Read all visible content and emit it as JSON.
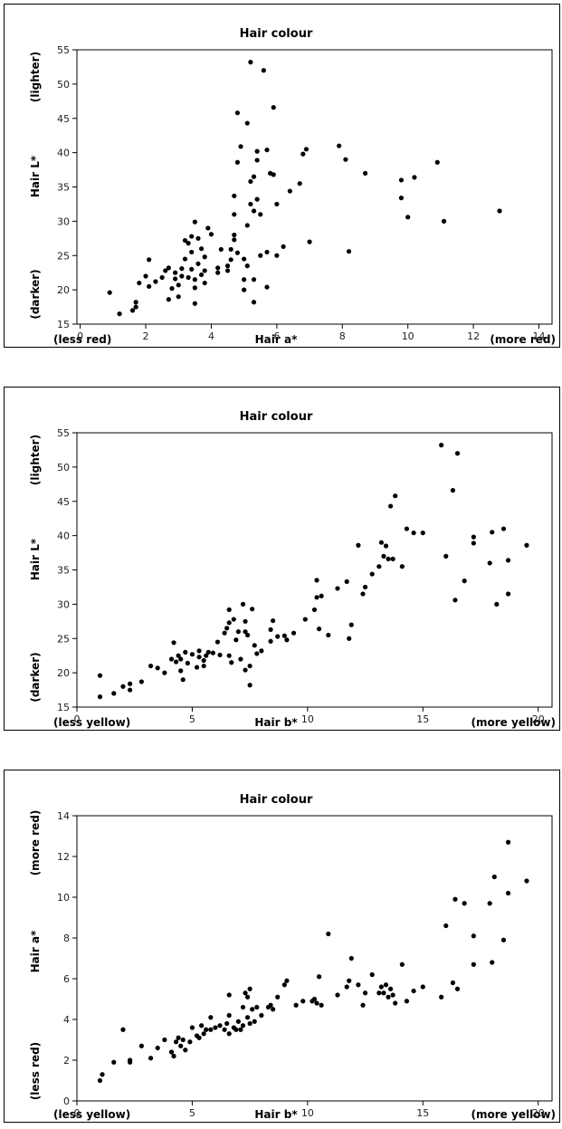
{
  "chart_data": [
    {
      "type": "scatter",
      "title": "Hair colour",
      "xlabel": "Hair a*",
      "ylabel": "Hair L*",
      "x_low_label": "(less red)",
      "x_high_label": "(more red)",
      "y_low_label": "(darker)",
      "y_high_label": "(lighter)",
      "xlim": [
        -0.1,
        14.4
      ],
      "ylim": [
        15,
        55
      ],
      "xticks": [
        0,
        2,
        4,
        6,
        8,
        10,
        12,
        14
      ],
      "yticks": [
        15,
        20,
        25,
        30,
        35,
        40,
        45,
        50,
        55
      ],
      "grid": false,
      "points": [
        [
          0.9,
          19.6
        ],
        [
          1.2,
          16.5
        ],
        [
          1.6,
          17.0
        ],
        [
          1.7,
          17.5
        ],
        [
          1.7,
          18.2
        ],
        [
          1.8,
          21.0
        ],
        [
          2.0,
          22.0
        ],
        [
          2.1,
          24.4
        ],
        [
          2.1,
          20.5
        ],
        [
          2.3,
          21.2
        ],
        [
          2.5,
          21.8
        ],
        [
          2.6,
          22.8
        ],
        [
          2.7,
          23.2
        ],
        [
          2.7,
          18.6
        ],
        [
          2.8,
          20.2
        ],
        [
          2.9,
          22.5
        ],
        [
          2.9,
          21.6
        ],
        [
          3.0,
          19.0
        ],
        [
          3.0,
          20.7
        ],
        [
          3.1,
          22.0
        ],
        [
          3.1,
          23.1
        ],
        [
          3.2,
          24.5
        ],
        [
          3.2,
          27.2
        ],
        [
          3.3,
          21.8
        ],
        [
          3.3,
          26.8
        ],
        [
          3.4,
          23.0
        ],
        [
          3.4,
          27.8
        ],
        [
          3.4,
          25.5
        ],
        [
          3.5,
          20.3
        ],
        [
          3.5,
          21.5
        ],
        [
          3.5,
          18.0
        ],
        [
          3.5,
          29.9
        ],
        [
          3.6,
          27.5
        ],
        [
          3.6,
          23.8
        ],
        [
          3.7,
          26.0
        ],
        [
          3.7,
          22.2
        ],
        [
          3.8,
          22.8
        ],
        [
          3.8,
          21.0
        ],
        [
          3.8,
          24.8
        ],
        [
          3.9,
          29.0
        ],
        [
          4.0,
          28.1
        ],
        [
          4.2,
          22.5
        ],
        [
          4.2,
          23.2
        ],
        [
          4.3,
          25.9
        ],
        [
          4.5,
          23.5
        ],
        [
          4.5,
          22.8
        ],
        [
          4.6,
          25.9
        ],
        [
          4.6,
          24.4
        ],
        [
          4.7,
          27.3
        ],
        [
          4.7,
          28.0
        ],
        [
          4.7,
          31.0
        ],
        [
          4.7,
          33.7
        ],
        [
          4.8,
          25.4
        ],
        [
          4.8,
          38.6
        ],
        [
          4.8,
          45.8
        ],
        [
          4.9,
          40.9
        ],
        [
          5.0,
          24.5
        ],
        [
          5.0,
          21.5
        ],
        [
          5.0,
          20.0
        ],
        [
          5.1,
          23.5
        ],
        [
          5.1,
          29.4
        ],
        [
          5.1,
          44.3
        ],
        [
          5.2,
          53.2
        ],
        [
          5.2,
          32.5
        ],
        [
          5.2,
          35.8
        ],
        [
          5.3,
          21.5
        ],
        [
          5.3,
          18.2
        ],
        [
          5.3,
          36.5
        ],
        [
          5.3,
          31.5
        ],
        [
          5.4,
          33.2
        ],
        [
          5.4,
          38.9
        ],
        [
          5.4,
          40.2
        ],
        [
          5.5,
          31.0
        ],
        [
          5.5,
          25.0
        ],
        [
          5.6,
          52.0
        ],
        [
          5.7,
          20.4
        ],
        [
          5.7,
          25.5
        ],
        [
          5.7,
          40.4
        ],
        [
          5.8,
          37.0
        ],
        [
          5.9,
          36.8
        ],
        [
          5.9,
          46.6
        ],
        [
          6.0,
          32.5
        ],
        [
          6.0,
          25.0
        ],
        [
          6.2,
          26.3
        ],
        [
          6.4,
          34.4
        ],
        [
          6.7,
          35.5
        ],
        [
          6.8,
          39.8
        ],
        [
          6.9,
          40.5
        ],
        [
          7.0,
          27.0
        ],
        [
          7.9,
          41.0
        ],
        [
          8.1,
          39.0
        ],
        [
          8.2,
          25.6
        ],
        [
          8.7,
          37.0
        ],
        [
          9.8,
          36.0
        ],
        [
          9.8,
          33.4
        ],
        [
          10.0,
          30.6
        ],
        [
          10.2,
          36.4
        ],
        [
          10.9,
          38.6
        ],
        [
          11.1,
          30.0
        ],
        [
          12.8,
          31.5
        ]
      ]
    },
    {
      "type": "scatter",
      "title": "Hair colour",
      "xlabel": "Hair b*",
      "ylabel": "Hair L*",
      "x_low_label": "(less yellow)",
      "x_high_label": "(more yellow)",
      "y_low_label": "(darker)",
      "y_high_label": "(lighter)",
      "xlim": [
        0,
        20.6
      ],
      "ylim": [
        15,
        55
      ],
      "xticks": [
        0,
        5,
        10,
        15,
        20
      ],
      "yticks": [
        15,
        20,
        25,
        30,
        35,
        40,
        45,
        50,
        55
      ],
      "grid": false,
      "points": [
        [
          1.0,
          19.6
        ],
        [
          1.0,
          16.5
        ],
        [
          1.6,
          17.0
        ],
        [
          2.0,
          18.0
        ],
        [
          2.3,
          17.5
        ],
        [
          2.3,
          18.4
        ],
        [
          2.8,
          18.7
        ],
        [
          3.2,
          21.0
        ],
        [
          3.5,
          20.7
        ],
        [
          3.8,
          20.0
        ],
        [
          4.1,
          22.0
        ],
        [
          4.2,
          24.4
        ],
        [
          4.3,
          21.6
        ],
        [
          4.4,
          22.5
        ],
        [
          4.5,
          20.3
        ],
        [
          4.5,
          22.0
        ],
        [
          4.6,
          19.0
        ],
        [
          4.7,
          23.0
        ],
        [
          4.8,
          21.4
        ],
        [
          5.0,
          22.7
        ],
        [
          5.2,
          20.8
        ],
        [
          5.3,
          22.3
        ],
        [
          5.3,
          23.2
        ],
        [
          5.5,
          21.8
        ],
        [
          5.5,
          21.0
        ],
        [
          5.6,
          22.5
        ],
        [
          5.7,
          23.0
        ],
        [
          5.9,
          22.9
        ],
        [
          6.1,
          24.5
        ],
        [
          6.2,
          22.6
        ],
        [
          6.4,
          25.8
        ],
        [
          6.5,
          26.5
        ],
        [
          6.6,
          27.3
        ],
        [
          6.6,
          29.2
        ],
        [
          6.6,
          22.5
        ],
        [
          6.7,
          21.5
        ],
        [
          6.8,
          27.8
        ],
        [
          6.9,
          24.8
        ],
        [
          7.0,
          26.0
        ],
        [
          7.1,
          22.0
        ],
        [
          7.2,
          30.0
        ],
        [
          7.3,
          27.5
        ],
        [
          7.3,
          26.0
        ],
        [
          7.3,
          20.4
        ],
        [
          7.4,
          25.5
        ],
        [
          7.5,
          18.2
        ],
        [
          7.5,
          21.0
        ],
        [
          7.6,
          29.3
        ],
        [
          7.7,
          24.0
        ],
        [
          7.8,
          22.8
        ],
        [
          8.0,
          23.2
        ],
        [
          8.4,
          24.6
        ],
        [
          8.4,
          26.3
        ],
        [
          8.5,
          27.6
        ],
        [
          8.7,
          25.3
        ],
        [
          9.0,
          25.4
        ],
        [
          9.1,
          24.8
        ],
        [
          9.4,
          25.8
        ],
        [
          9.9,
          27.8
        ],
        [
          10.3,
          29.2
        ],
        [
          10.4,
          31.0
        ],
        [
          10.4,
          33.5
        ],
        [
          10.5,
          26.4
        ],
        [
          10.6,
          31.2
        ],
        [
          10.9,
          25.5
        ],
        [
          11.3,
          32.3
        ],
        [
          11.7,
          33.3
        ],
        [
          11.8,
          25.0
        ],
        [
          11.9,
          27.0
        ],
        [
          12.2,
          38.6
        ],
        [
          12.4,
          31.5
        ],
        [
          12.5,
          32.5
        ],
        [
          12.8,
          34.4
        ],
        [
          13.1,
          35.5
        ],
        [
          13.2,
          39.0
        ],
        [
          13.3,
          37.0
        ],
        [
          13.4,
          38.5
        ],
        [
          13.5,
          36.6
        ],
        [
          13.6,
          44.3
        ],
        [
          13.7,
          36.6
        ],
        [
          13.8,
          45.8
        ],
        [
          14.1,
          35.5
        ],
        [
          14.3,
          41.0
        ],
        [
          14.6,
          40.4
        ],
        [
          15.0,
          40.4
        ],
        [
          15.8,
          53.2
        ],
        [
          16.0,
          37.0
        ],
        [
          16.3,
          46.6
        ],
        [
          16.4,
          30.6
        ],
        [
          16.5,
          52.0
        ],
        [
          16.8,
          33.4
        ],
        [
          17.2,
          39.8
        ],
        [
          17.2,
          38.9
        ],
        [
          17.9,
          36.0
        ],
        [
          18.0,
          40.5
        ],
        [
          18.2,
          30.0
        ],
        [
          18.5,
          41.0
        ],
        [
          18.7,
          31.5
        ],
        [
          18.7,
          36.4
        ],
        [
          19.5,
          38.6
        ]
      ]
    },
    {
      "type": "scatter",
      "title": "Hair colour",
      "xlabel": "Hair b*",
      "ylabel": "Hair a*",
      "x_low_label": "(less yellow)",
      "x_high_label": "(more yellow)",
      "y_low_label": "(less red)",
      "y_high_label": "(more red)",
      "xlim": [
        0,
        20.6
      ],
      "ylim": [
        0,
        14
      ],
      "xticks": [
        0,
        5,
        10,
        15,
        20
      ],
      "yticks": [
        0,
        2,
        4,
        6,
        8,
        10,
        12,
        14
      ],
      "grid": false,
      "points": [
        [
          1.0,
          1.0
        ],
        [
          1.1,
          1.3
        ],
        [
          1.6,
          1.9
        ],
        [
          2.0,
          3.5
        ],
        [
          2.3,
          1.9
        ],
        [
          2.3,
          2.0
        ],
        [
          2.8,
          2.7
        ],
        [
          3.2,
          2.1
        ],
        [
          3.5,
          2.6
        ],
        [
          3.8,
          3.0
        ],
        [
          4.1,
          2.4
        ],
        [
          4.2,
          2.2
        ],
        [
          4.3,
          2.9
        ],
        [
          4.4,
          3.1
        ],
        [
          4.5,
          2.7
        ],
        [
          4.6,
          3.0
        ],
        [
          4.7,
          2.5
        ],
        [
          4.9,
          2.9
        ],
        [
          5.0,
          3.6
        ],
        [
          5.2,
          3.2
        ],
        [
          5.3,
          3.1
        ],
        [
          5.4,
          3.7
        ],
        [
          5.5,
          3.3
        ],
        [
          5.6,
          3.5
        ],
        [
          5.8,
          3.5
        ],
        [
          5.8,
          4.1
        ],
        [
          6.0,
          3.6
        ],
        [
          6.2,
          3.7
        ],
        [
          6.4,
          3.5
        ],
        [
          6.5,
          3.8
        ],
        [
          6.6,
          3.3
        ],
        [
          6.6,
          4.2
        ],
        [
          6.6,
          5.2
        ],
        [
          6.8,
          3.6
        ],
        [
          6.9,
          3.5
        ],
        [
          7.0,
          3.9
        ],
        [
          7.1,
          3.5
        ],
        [
          7.2,
          3.7
        ],
        [
          7.2,
          4.6
        ],
        [
          7.3,
          5.3
        ],
        [
          7.4,
          4.1
        ],
        [
          7.4,
          5.1
        ],
        [
          7.5,
          3.8
        ],
        [
          7.5,
          5.5
        ],
        [
          7.6,
          4.5
        ],
        [
          7.7,
          3.9
        ],
        [
          7.8,
          4.6
        ],
        [
          8.0,
          4.2
        ],
        [
          8.3,
          4.6
        ],
        [
          8.4,
          4.7
        ],
        [
          8.5,
          4.5
        ],
        [
          8.7,
          5.1
        ],
        [
          9.0,
          5.7
        ],
        [
          9.1,
          5.9
        ],
        [
          9.5,
          4.7
        ],
        [
          9.8,
          4.9
        ],
        [
          10.2,
          4.9
        ],
        [
          10.3,
          5.0
        ],
        [
          10.4,
          4.8
        ],
        [
          10.5,
          6.1
        ],
        [
          10.6,
          4.7
        ],
        [
          10.9,
          8.2
        ],
        [
          11.3,
          5.2
        ],
        [
          11.7,
          5.6
        ],
        [
          11.8,
          5.9
        ],
        [
          11.9,
          7.0
        ],
        [
          12.2,
          5.7
        ],
        [
          12.4,
          4.7
        ],
        [
          12.5,
          5.3
        ],
        [
          12.8,
          6.2
        ],
        [
          13.1,
          5.3
        ],
        [
          13.2,
          5.6
        ],
        [
          13.3,
          5.3
        ],
        [
          13.4,
          5.7
        ],
        [
          13.5,
          5.1
        ],
        [
          13.6,
          5.5
        ],
        [
          13.7,
          5.2
        ],
        [
          13.8,
          4.8
        ],
        [
          14.1,
          6.7
        ],
        [
          14.3,
          4.9
        ],
        [
          14.6,
          5.4
        ],
        [
          15.0,
          5.6
        ],
        [
          15.8,
          5.1
        ],
        [
          16.0,
          8.6
        ],
        [
          16.3,
          5.8
        ],
        [
          16.4,
          9.9
        ],
        [
          16.5,
          5.5
        ],
        [
          16.8,
          9.7
        ],
        [
          17.2,
          6.7
        ],
        [
          17.2,
          8.1
        ],
        [
          17.9,
          9.7
        ],
        [
          18.0,
          6.8
        ],
        [
          18.1,
          11.0
        ],
        [
          18.5,
          7.9
        ],
        [
          18.7,
          12.7
        ],
        [
          18.7,
          10.2
        ],
        [
          19.5,
          10.8
        ]
      ]
    }
  ]
}
